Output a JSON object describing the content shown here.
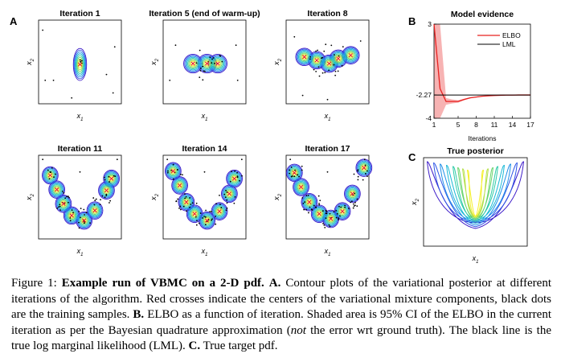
{
  "panel_labels": {
    "a": "A",
    "b": "B",
    "c": "C"
  },
  "contour_panels": [
    {
      "title": "Iteration 1",
      "xlabel": "x",
      "xsub": "1",
      "ylabel": "x",
      "ysub": "2"
    },
    {
      "title": "Iteration 5 (end of warm-up)",
      "xlabel": "x",
      "xsub": "1",
      "ylabel": "x",
      "ysub": "2"
    },
    {
      "title": "Iteration 8",
      "xlabel": "x",
      "xsub": "1",
      "ylabel": "x",
      "ysub": "2"
    },
    {
      "title": "Iteration 11",
      "xlabel": "x",
      "xsub": "1",
      "ylabel": "x",
      "ysub": "2"
    },
    {
      "title": "Iteration 14",
      "xlabel": "x",
      "xsub": "1",
      "ylabel": "x",
      "ysub": "2"
    },
    {
      "title": "Iteration 17",
      "xlabel": "x",
      "xsub": "1",
      "ylabel": "x",
      "ysub": "2"
    }
  ],
  "true_posterior": {
    "title": "True posterior",
    "xlabel": "x",
    "xsub": "1",
    "ylabel": "x",
    "ysub": "2"
  },
  "chart_data": {
    "type": "line",
    "title": "Model evidence",
    "xlabel": "Iterations",
    "ylabel": "",
    "xlim": [
      1,
      17
    ],
    "ylim": [
      -4,
      3
    ],
    "xticks": [
      "1",
      "5",
      "8",
      "11",
      "14",
      "17"
    ],
    "yticks": [
      "3",
      "-2.27",
      "-4"
    ],
    "x": [
      1,
      2,
      3,
      4,
      5,
      6,
      7,
      8,
      9,
      10,
      11,
      12,
      13,
      14,
      15,
      16,
      17
    ],
    "series": [
      {
        "name": "ELBO",
        "color": "#e8201f",
        "values": [
          3,
          -1.8,
          -2.75,
          -2.75,
          -2.75,
          -2.6,
          -2.48,
          -2.42,
          -2.36,
          -2.33,
          -2.31,
          -2.29,
          -2.28,
          -2.28,
          -2.27,
          -2.27,
          -2.27
        ],
        "ci_upper": [
          3,
          3,
          -2.5,
          -2.6,
          -2.66,
          -2.54,
          -2.44,
          -2.39,
          -2.34,
          -2.31,
          -2.3,
          -2.28,
          -2.28,
          -2.27,
          -2.27,
          -2.27,
          -2.27
        ],
        "ci_lower": [
          -4,
          -4,
          -3.0,
          -2.9,
          -2.84,
          -2.66,
          -2.52,
          -2.45,
          -2.38,
          -2.35,
          -2.32,
          -2.3,
          -2.29,
          -2.28,
          -2.27,
          -2.27,
          -2.27
        ]
      },
      {
        "name": "LML",
        "color": "#000000",
        "values": [
          -2.27,
          -2.27,
          -2.27,
          -2.27,
          -2.27,
          -2.27,
          -2.27,
          -2.27,
          -2.27,
          -2.27,
          -2.27,
          -2.27,
          -2.27,
          -2.27,
          -2.27,
          -2.27,
          -2.27
        ]
      }
    ],
    "ci_color": "#f7b3b3",
    "legend_position": "top-right"
  },
  "caption": {
    "fig": "Figure 1: ",
    "bold1": "Example run of VBMC on a 2-D pdf.",
    "a_label": "A.",
    "t1": " Contour plots of the variational posterior at different iterations of the algorithm. Red crosses indicate the centers of the variational mixture components, black dots are the training samples. ",
    "b_label": "B.",
    "t2": " ELBO as a function of iteration. Shaded area is 95% CI of the ELBO in the current iteration as per the Bayesian quadrature approximation (",
    "not": "not",
    "t3": " the error wrt ground truth). The black line is the true log marginal likelihood (LML). ",
    "c_label": "C.",
    "t4": " True target pdf."
  },
  "colors": {
    "contour_outer": "#3a18c8",
    "contour_inner": "#f5f02a",
    "cross": "#e8201f",
    "dot": "#000000"
  }
}
